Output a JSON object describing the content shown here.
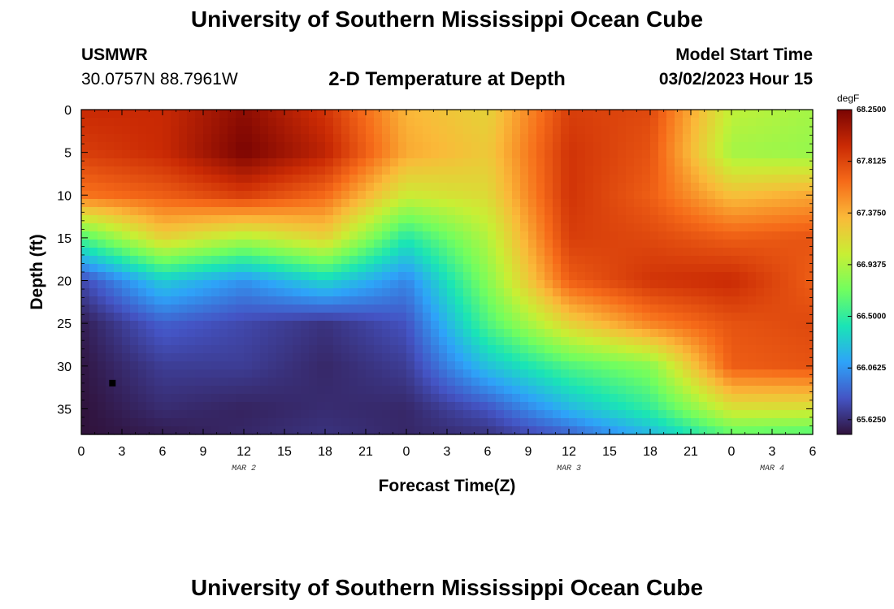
{
  "header": {
    "title": "University of Southern Mississippi Ocean Cube",
    "station": "USMWR",
    "coordinates": "30.0757N  88.7961W",
    "chart_title": "2-D Temperature at Depth",
    "model_start_label": "Model Start Time",
    "model_start_value": "03/02/2023 Hour 15"
  },
  "footer": {
    "title": "University of Southern Mississippi Ocean Cube"
  },
  "chart_data": {
    "type": "heatmap",
    "title": "2-D Temperature at Depth",
    "xlabel": "Forecast Time(Z)",
    "ylabel": "Depth (ft)",
    "x_range_hours": [
      0,
      54
    ],
    "ylim": [
      0,
      38
    ],
    "x_tick_labels": [
      "0",
      "3",
      "6",
      "9",
      "12",
      "15",
      "18",
      "21",
      "0",
      "3",
      "6",
      "9",
      "12",
      "15",
      "18",
      "21",
      "0",
      "3",
      "6"
    ],
    "y_ticks": [
      0,
      5,
      10,
      15,
      20,
      25,
      30,
      35
    ],
    "date_labels": [
      {
        "text": "MAR 2",
        "hour": 12
      },
      {
        "text": "MAR 3",
        "hour": 36
      },
      {
        "text": "MAR 4",
        "hour": 51
      }
    ],
    "colorbar": {
      "unit": "degF",
      "min": 65.5,
      "max": 68.25,
      "tick_labels": [
        "68.2500",
        "67.8125",
        "67.3750",
        "66.9375",
        "66.5000",
        "66.0625",
        "65.6250"
      ],
      "tick_values": [
        68.25,
        67.8125,
        67.375,
        66.9375,
        66.5,
        66.0625,
        65.625
      ],
      "colors": [
        "#30123b",
        "#4454c4",
        "#2ea3f9",
        "#1ae4b6",
        "#71fe5f",
        "#c8ef34",
        "#faba39",
        "#f66b19",
        "#ca2a04",
        "#7a0403"
      ]
    },
    "marker": {
      "hour": 2.3,
      "depth_ft": 32,
      "color": "#000000"
    },
    "grid": {
      "hours": [
        0,
        6,
        12,
        18,
        24,
        30,
        36,
        42,
        48,
        54
      ],
      "depths_ft": [
        0,
        5,
        10,
        15,
        20,
        25,
        30,
        35,
        38
      ],
      "temperature_degF": [
        [
          67.95,
          67.95,
          68.18,
          67.9,
          67.35,
          67.2,
          67.85,
          67.8,
          67.0,
          66.9
        ],
        [
          67.85,
          67.95,
          68.25,
          68.0,
          67.4,
          67.25,
          67.9,
          67.75,
          66.9,
          66.85
        ],
        [
          67.6,
          67.7,
          67.85,
          67.65,
          67.05,
          67.15,
          67.9,
          67.7,
          67.3,
          67.4
        ],
        [
          66.6,
          67.2,
          66.95,
          67.2,
          66.45,
          66.95,
          67.85,
          67.8,
          67.7,
          67.75
        ],
        [
          65.75,
          66.3,
          66.05,
          66.35,
          66.0,
          66.8,
          67.7,
          67.9,
          67.95,
          67.7
        ],
        [
          65.55,
          65.85,
          65.75,
          65.65,
          65.8,
          66.6,
          67.2,
          67.55,
          67.75,
          67.8
        ],
        [
          65.52,
          65.7,
          65.7,
          65.6,
          65.7,
          66.25,
          66.6,
          66.8,
          67.7,
          67.75
        ],
        [
          65.5,
          65.62,
          65.58,
          65.62,
          65.6,
          65.8,
          66.2,
          66.5,
          67.1,
          67.1
        ],
        [
          65.5,
          65.55,
          65.6,
          65.65,
          65.6,
          65.65,
          65.85,
          66.2,
          66.65,
          66.6
        ]
      ]
    }
  }
}
